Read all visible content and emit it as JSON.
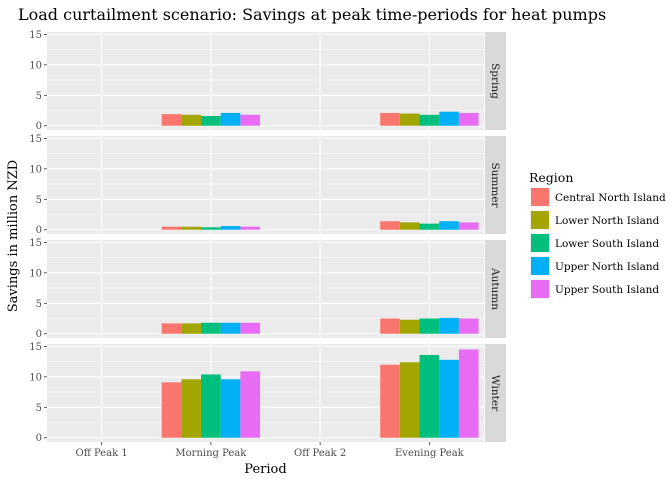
{
  "chart_data": {
    "type": "bar",
    "title": "Load curtailment scenario: Savings at peak time-periods for heat pumps",
    "xlabel": "Period",
    "ylabel": "Savings in million NZD",
    "ylim": [
      -0.7,
      15.4
    ],
    "yticks": [
      0,
      5,
      10,
      15
    ],
    "categories": [
      "Off Peak 1",
      "Morning Peak",
      "Off Peak 2",
      "Evening Peak"
    ],
    "legend_title": "Region",
    "legend_position": "right",
    "grid": true,
    "series_names": [
      "Central North Island",
      "Lower North Island",
      "Lower South Island",
      "Upper North Island",
      "Upper South Island"
    ],
    "series_colors": [
      "#F8766D",
      "#A3A500",
      "#00BF7D",
      "#00B0F6",
      "#E76BF3"
    ],
    "facets": [
      {
        "label": "Spring",
        "values": [
          [
            0,
            1.9,
            0,
            2.1
          ],
          [
            0,
            1.8,
            0,
            2.0
          ],
          [
            0,
            1.6,
            0,
            1.8
          ],
          [
            0,
            2.1,
            0,
            2.3
          ],
          [
            0,
            1.8,
            0,
            2.1
          ]
        ]
      },
      {
        "label": "Summer",
        "values": [
          [
            0,
            0.5,
            0,
            1.4
          ],
          [
            0,
            0.5,
            0,
            1.2
          ],
          [
            0,
            0.4,
            0,
            1.0
          ],
          [
            0,
            0.6,
            0,
            1.4
          ],
          [
            0,
            0.5,
            0,
            1.2
          ]
        ]
      },
      {
        "label": "Autumn",
        "values": [
          [
            0,
            1.7,
            0,
            2.5
          ],
          [
            0,
            1.7,
            0,
            2.3
          ],
          [
            0,
            1.8,
            0,
            2.5
          ],
          [
            0,
            1.8,
            0,
            2.6
          ],
          [
            0,
            1.8,
            0,
            2.5
          ]
        ]
      },
      {
        "label": "Winter",
        "values": [
          [
            0,
            9.1,
            0,
            12.0
          ],
          [
            0,
            9.6,
            0,
            12.4
          ],
          [
            0,
            10.4,
            0,
            13.6
          ],
          [
            0,
            9.6,
            0,
            12.8
          ],
          [
            0,
            10.9,
            0,
            14.5
          ]
        ]
      }
    ]
  }
}
